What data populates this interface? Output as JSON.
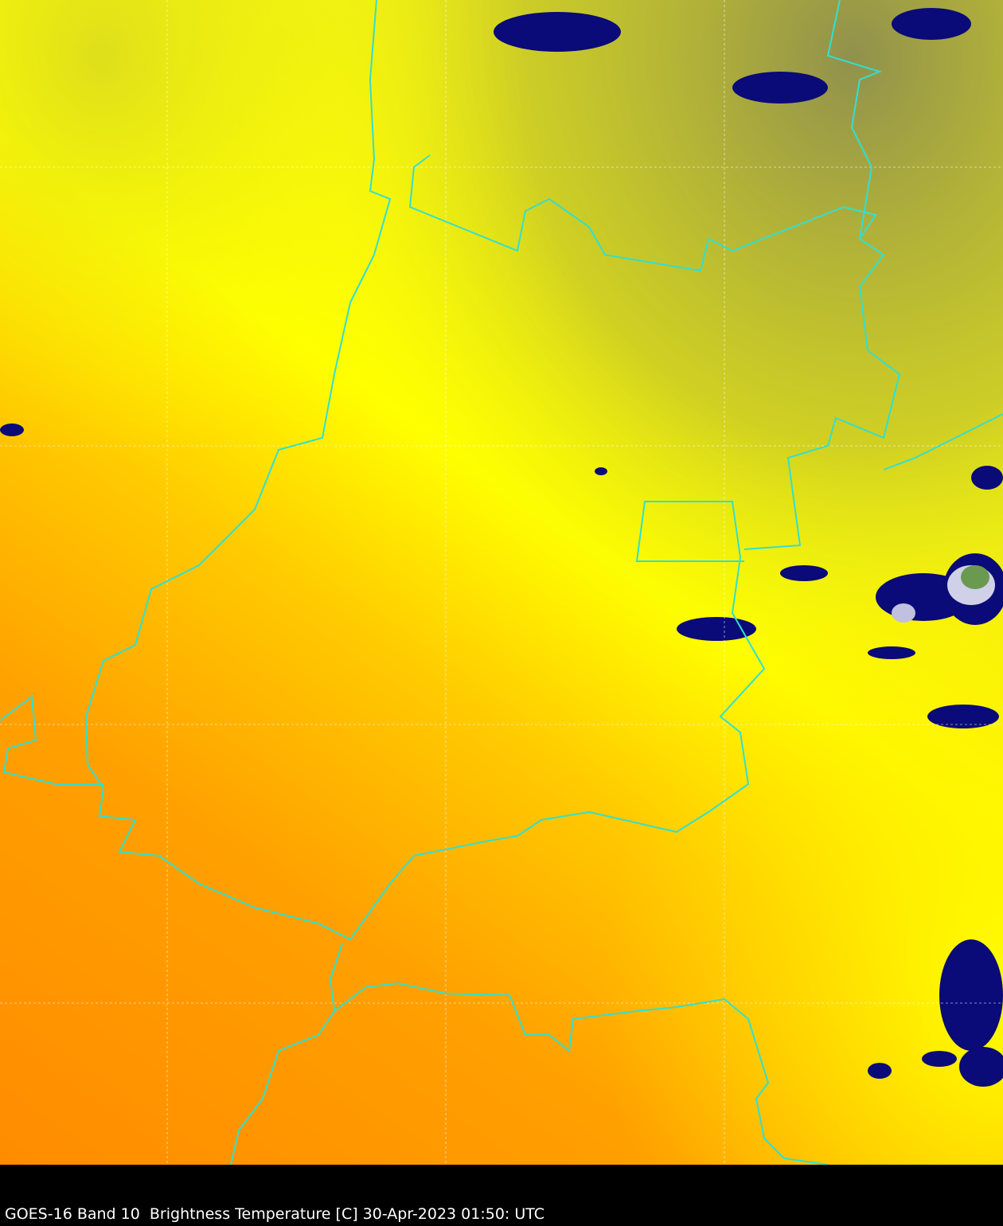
{
  "caption": "GOES-16 Band 10  Brightness Temperature [C] 30-Apr-2023 01:50: UTC",
  "colors": {
    "warm": "#ff8c00",
    "mid": "#ffc000",
    "cool": "#ffff00",
    "cold": "#8c8c50",
    "cloud": "#0a0a78",
    "border": "#30e0d0",
    "grid": "#ffffff"
  }
}
